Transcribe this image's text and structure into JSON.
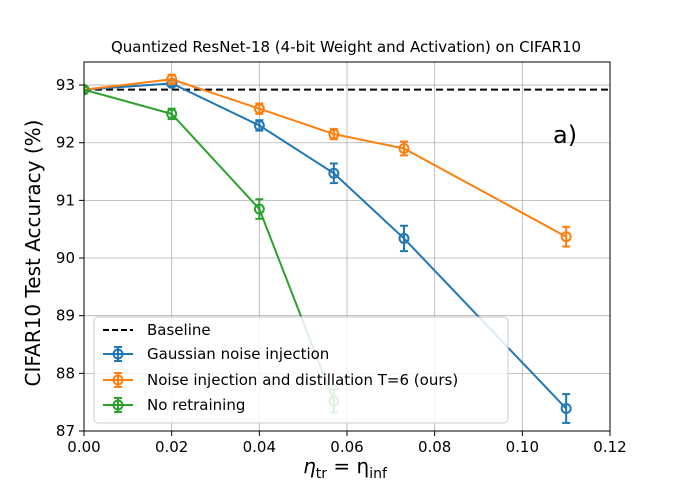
{
  "chart_data": {
    "type": "line",
    "title": "Quantized ResNet-18 (4-bit Weight and Activation) on CIFAR10",
    "xlabel_main": "η",
    "xlabel_sub1": "tr",
    "xlabel_eq": " = η",
    "xlabel_sub2": "inf",
    "ylabel": "CIFAR10 Test Accuracy (%)",
    "panel_label": "a)",
    "xlim": [
      0.0,
      0.12
    ],
    "ylim": [
      87,
      93.4
    ],
    "xticks": [
      0.0,
      0.02,
      0.04,
      0.06,
      0.08,
      0.1,
      0.12
    ],
    "xtick_labels": [
      "0.00",
      "0.02",
      "0.04",
      "0.06",
      "0.08",
      "0.10",
      "0.12"
    ],
    "yticks": [
      87,
      88,
      89,
      90,
      91,
      92,
      93
    ],
    "ytick_labels": [
      "87",
      "88",
      "89",
      "90",
      "91",
      "92",
      "93"
    ],
    "grid": true,
    "legend_position": "lower-left",
    "baseline": {
      "name": "Baseline",
      "y": 92.92,
      "color": "#000000",
      "style": "dashed"
    },
    "series": [
      {
        "name": "Gaussian noise injection",
        "color": "#1f77b4",
        "x": [
          0.0,
          0.02,
          0.04,
          0.057,
          0.073,
          0.11
        ],
        "y": [
          92.92,
          93.03,
          92.3,
          91.47,
          90.34,
          87.39
        ],
        "err": [
          0.05,
          0.05,
          0.09,
          0.17,
          0.22,
          0.25
        ]
      },
      {
        "name": "Noise injection and distillation T=6 (ours)",
        "color": "#ff7f0e",
        "x": [
          0.0,
          0.02,
          0.04,
          0.057,
          0.073,
          0.11
        ],
        "y": [
          92.92,
          93.1,
          92.59,
          92.15,
          91.9,
          90.37
        ],
        "err": [
          0.05,
          0.08,
          0.09,
          0.09,
          0.12,
          0.17
        ]
      },
      {
        "name": "No retraining",
        "color": "#2ca02c",
        "x": [
          0.0,
          0.02,
          0.04,
          0.057
        ],
        "y": [
          92.92,
          92.5,
          90.85,
          87.52
        ],
        "err": [
          0.05,
          0.09,
          0.17,
          0.2
        ]
      }
    ]
  }
}
